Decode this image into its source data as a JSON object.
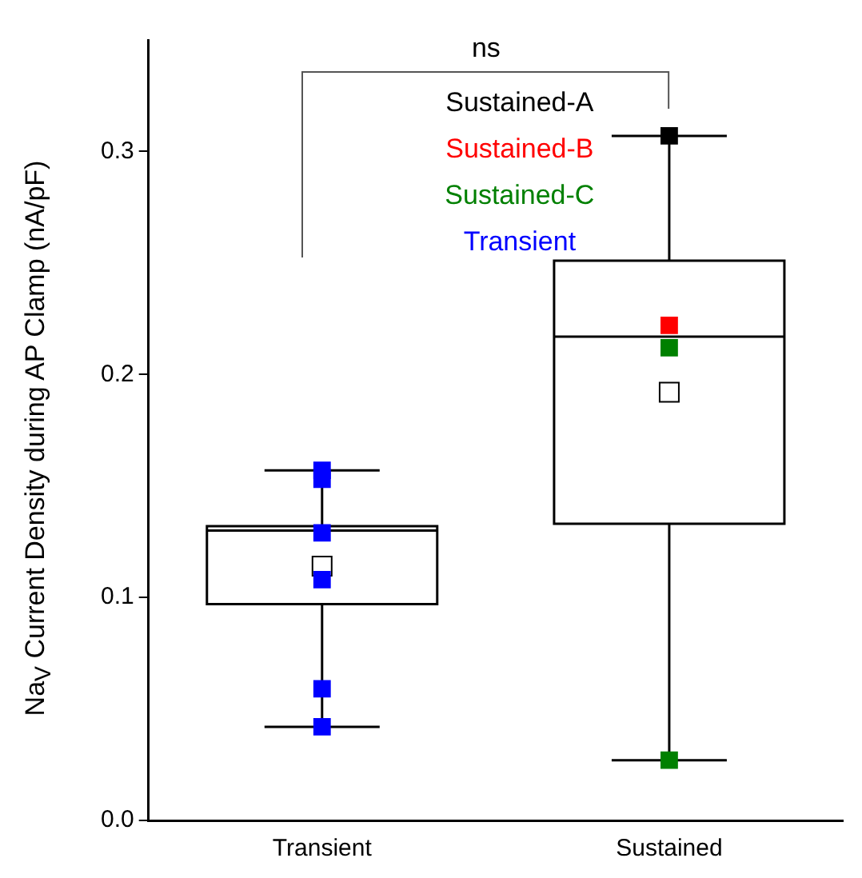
{
  "chart_data": {
    "type": "box",
    "ylabel": "Na$_{V}$ Current Density during AP Clamp (nA/pF)",
    "categories": [
      "Transient",
      "Sustained"
    ],
    "boxes": [
      {
        "low": 0.042,
        "q1": 0.097,
        "median": 0.13,
        "q3": 0.132,
        "high": 0.157,
        "mean": 0.114
      },
      {
        "low": 0.027,
        "q1": 0.133,
        "median": 0.217,
        "q3": 0.251,
        "high": 0.307,
        "mean": 0.192
      }
    ],
    "series": [
      {
        "type": "scatter",
        "name": "Sustained-A",
        "color": "#000000",
        "x": [
          "Sustained"
        ],
        "values": [
          0.307
        ]
      },
      {
        "type": "scatter",
        "name": "Sustained-B",
        "color": "#ff0000",
        "x": [
          "Sustained"
        ],
        "values": [
          0.222
        ]
      },
      {
        "type": "scatter",
        "name": "Sustained-C",
        "color": "#008000",
        "x": [
          "Sustained",
          "Sustained"
        ],
        "values": [
          0.212,
          0.027
        ]
      },
      {
        "type": "scatter",
        "name": "Transient",
        "color": "#0000ff",
        "x": [
          "Transient",
          "Transient",
          "Transient",
          "Transient",
          "Transient",
          "Transient"
        ],
        "values": [
          0.157,
          0.153,
          0.129,
          0.108,
          0.059,
          0.042
        ]
      }
    ],
    "marker": "square",
    "ylim": [
      0,
      0.35
    ],
    "yticks": [
      {
        "value": 0,
        "label": "0.0"
      },
      0.1,
      0.2,
      0.3
    ],
    "legend": "top",
    "grid": false,
    "annotations": [
      "ns"
    ]
  }
}
